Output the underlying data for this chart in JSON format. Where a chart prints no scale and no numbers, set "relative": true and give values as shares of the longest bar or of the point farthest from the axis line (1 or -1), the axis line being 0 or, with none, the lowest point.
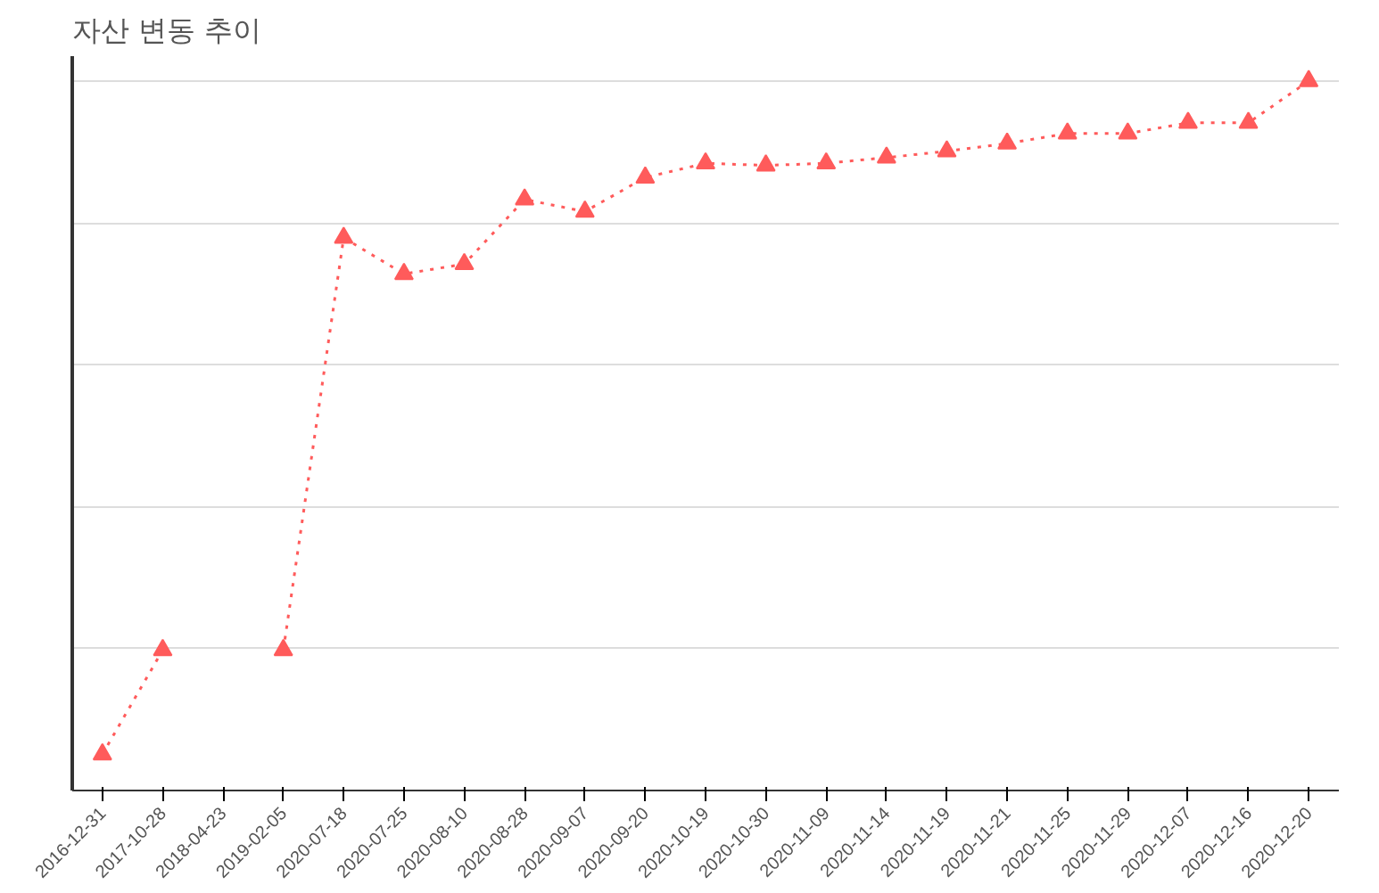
{
  "chart_data": {
    "type": "line",
    "title": "자산 변동 추이",
    "relative": true,
    "grid": "y",
    "marker": "triangle",
    "line_style": "dotted",
    "tick_labels": "x",
    "categories": [
      "2016-12-31",
      "2017-10-28",
      "2018-04-23",
      "2019-02-05",
      "2020-07-18",
      "2020-07-25",
      "2020-08-10",
      "2020-08-28",
      "2020-09-07",
      "2020-09-20",
      "2020-10-19",
      "2020-10-30",
      "2020-11-09",
      "2020-11-14",
      "2020-11-19",
      "2020-11-21",
      "2020-11-25",
      "2020-11-29",
      "2020-12-07",
      "2020-12-16",
      "2020-12-20"
    ],
    "series": [
      {
        "color": "#ff5b5b",
        "values": [
          0.051,
          0.198,
          null,
          0.198,
          0.779,
          0.728,
          0.742,
          0.833,
          0.816,
          0.864,
          0.884,
          0.881,
          0.884,
          0.892,
          0.901,
          0.912,
          0.926,
          0.926,
          0.941,
          0.941,
          1.0
        ]
      }
    ]
  }
}
